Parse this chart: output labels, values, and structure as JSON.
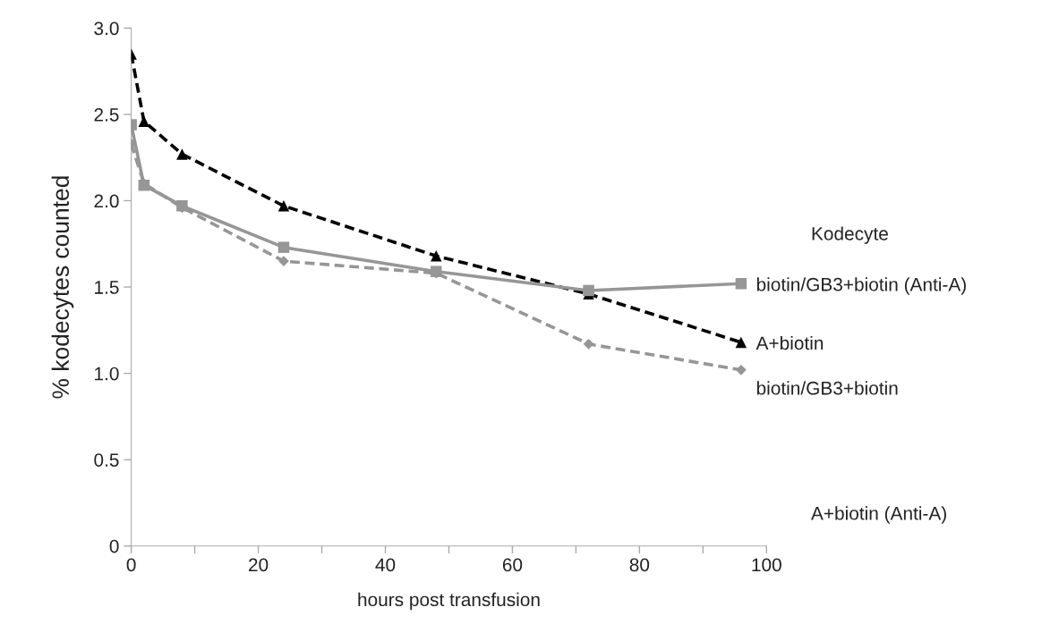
{
  "chart_data": {
    "type": "line",
    "xlabel": "hours post transfusion",
    "ylabel": "% kodecytes counted",
    "legend_title": "Kodecyte",
    "x": [
      0,
      2,
      8,
      24,
      48,
      72,
      96
    ],
    "series": [
      {
        "name": "biotin/GB3+biotin (Anti-A)",
        "color": "#969696",
        "marker": "square",
        "line_style": "solid",
        "values": [
          2.44,
          2.09,
          1.97,
          1.73,
          1.59,
          1.48,
          1.52
        ]
      },
      {
        "name": "A+biotin",
        "color": "#000000",
        "marker": "triangle",
        "line_style": "dashed",
        "values": [
          2.85,
          2.46,
          2.27,
          1.97,
          1.68,
          1.46,
          1.18
        ]
      },
      {
        "name": "biotin/GB3+biotin",
        "color": "#969696",
        "marker": "diamond",
        "line_style": "dashed",
        "values": [
          2.33,
          2.1,
          1.96,
          1.65,
          1.58,
          1.17,
          1.02
        ]
      }
    ],
    "annotations": [
      "A+biotin (Anti-A)"
    ],
    "xlim": [
      0,
      100
    ],
    "ylim": [
      0,
      3.0
    ],
    "xticks": [
      0,
      {
        "value": 10,
        "label": null
      },
      20,
      {
        "value": 30,
        "label": null
      },
      40,
      {
        "value": 50,
        "label": null
      },
      60,
      {
        "value": 70,
        "label": null
      },
      80,
      {
        "value": 90,
        "label": null
      },
      100
    ],
    "yticks": [
      0,
      0.5,
      {
        "value": 1,
        "label": "1.0"
      },
      1.5,
      {
        "value": 2,
        "label": "2.0"
      },
      2.5,
      {
        "value": 3,
        "label": "3.0"
      }
    ],
    "grid": false,
    "legend": "right"
  }
}
